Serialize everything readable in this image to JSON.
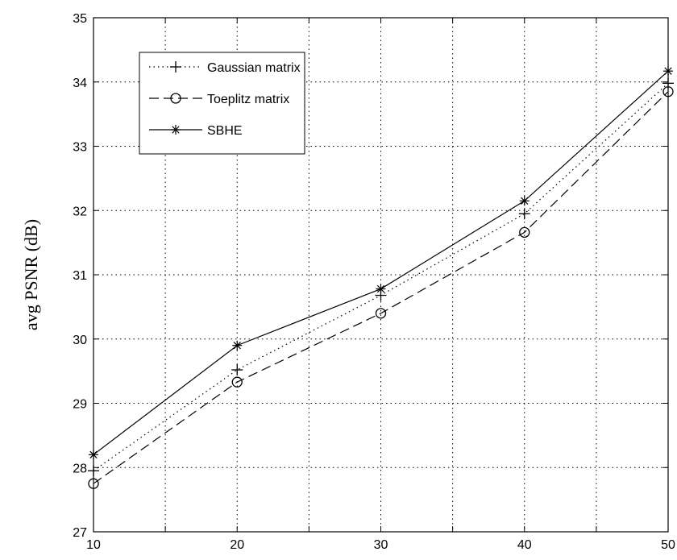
{
  "chart_data": {
    "type": "line",
    "title": "",
    "xlabel": "",
    "ylabel": "avg PSNR (dB)",
    "x": [
      10,
      20,
      30,
      40,
      50
    ],
    "xlim": [
      10,
      50
    ],
    "ylim": [
      27,
      35
    ],
    "xticks": [
      "10",
      "20",
      "30",
      "40",
      "50"
    ],
    "xgrid": [
      10,
      15,
      20,
      25,
      30,
      35,
      40,
      45,
      50
    ],
    "yticks": [
      "27",
      "28",
      "29",
      "30",
      "31",
      "32",
      "33",
      "34",
      "35"
    ],
    "grid": true,
    "legend_position": "top-left",
    "series": [
      {
        "name": "Gaussian matrix",
        "values": [
          27.95,
          29.52,
          30.68,
          31.95,
          33.98
        ],
        "line_style": "dotted",
        "marker": "plus",
        "color": "#000000"
      },
      {
        "name": "Toeplitz matrix",
        "values": [
          27.75,
          29.33,
          30.4,
          31.66,
          33.85
        ],
        "line_style": "dashed",
        "marker": "circle",
        "color": "#000000"
      },
      {
        "name": "SBHE",
        "values": [
          28.2,
          29.9,
          30.78,
          32.15,
          34.17
        ],
        "line_style": "solid",
        "marker": "asterisk",
        "color": "#000000"
      }
    ]
  }
}
